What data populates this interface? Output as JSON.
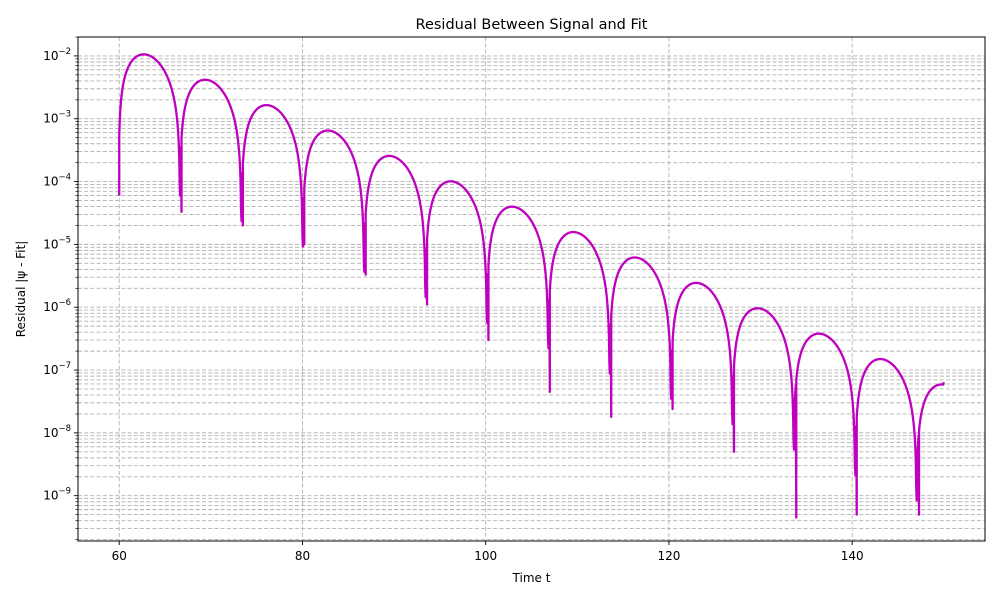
{
  "chart_data": {
    "type": "line",
    "title": "Residual Between Signal and Fit",
    "xlabel": "Time t",
    "ylabel": "Residual |ψ - Fit|",
    "xlim": [
      55.5,
      154.5
    ],
    "ylim": [
      1.9e-10,
      0.02
    ],
    "yscale": "log",
    "grid": true,
    "x_ticks": [
      60,
      80,
      100,
      120,
      140
    ],
    "x_tick_labels": [
      "60",
      "80",
      "100",
      "120",
      "140"
    ],
    "y_ticks": [
      1e-09,
      1e-08,
      1e-07,
      1e-06,
      1e-05,
      0.0001,
      0.001,
      0.01
    ],
    "y_tick_labels": [
      {
        "base": "10",
        "exp": "−9"
      },
      {
        "base": "10",
        "exp": "−8"
      },
      {
        "base": "10",
        "exp": "−7"
      },
      {
        "base": "10",
        "exp": "−6"
      },
      {
        "base": "10",
        "exp": "−5"
      },
      {
        "base": "10",
        "exp": "−4"
      },
      {
        "base": "10",
        "exp": "−3"
      },
      {
        "base": "10",
        "exp": "−2"
      }
    ],
    "series": [
      {
        "color": "#bf00bf",
        "x_range": [
          60,
          150
        ],
        "envelope": {
          "amplitude_at_t60": 0.016,
          "decay_rate": 0.1389
        },
        "period": 6.7,
        "phase_at_t60": 0.07,
        "end_value": 6.4e-08,
        "troughs": [
          {
            "x": 60.0,
            "y": 6e-05
          },
          {
            "x": 66.8,
            "y": 3.3e-05
          },
          {
            "x": 73.5,
            "y": 2e-05
          },
          {
            "x": 80.2,
            "y": 1e-05
          },
          {
            "x": 86.9,
            "y": 3.3e-06
          },
          {
            "x": 93.6,
            "y": 1.1e-06
          },
          {
            "x": 100.3,
            "y": 3e-07
          },
          {
            "x": 107.0,
            "y": 4.5e-08
          },
          {
            "x": 113.7,
            "y": 1.8e-08
          },
          {
            "x": 120.4,
            "y": 2.4e-08
          },
          {
            "x": 127.1,
            "y": 5e-09
          },
          {
            "x": 133.9,
            "y": 4.5e-10
          },
          {
            "x": 140.5,
            "y": 5e-10
          },
          {
            "x": 147.3,
            "y": 5e-10
          }
        ]
      }
    ]
  }
}
